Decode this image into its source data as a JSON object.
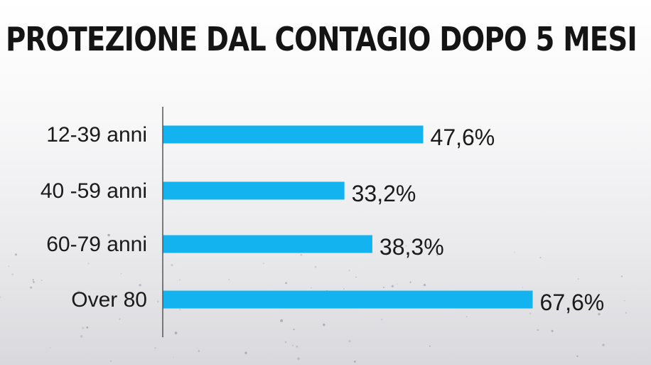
{
  "chart_data": {
    "type": "bar",
    "orientation": "horizontal",
    "title": "PROTEZIONE DAL CONTAGIO DOPO 5 MESI",
    "categories": [
      "12-39 anni",
      "40 -59 anni",
      "60-79 anni",
      "Over 80"
    ],
    "values": [
      47.6,
      33.2,
      38.3,
      67.6
    ],
    "value_labels": [
      "47,6%",
      "33,2%",
      "38,3%",
      "67,6%"
    ],
    "xlim": [
      0,
      100
    ],
    "grid": false,
    "legend": "none",
    "bar_color": "#12b3ee",
    "axis_color": "#555555"
  }
}
